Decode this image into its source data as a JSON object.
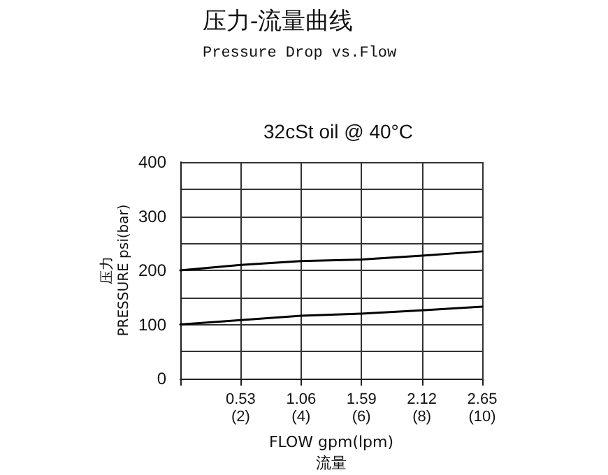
{
  "chart_data": {
    "type": "line",
    "title": "压力-流量曲线",
    "subtitle": "Pressure Drop vs.Flow",
    "annotations": [
      "32cSt oil @ 40°C"
    ],
    "xlabel": "FLOW gpm(lpm)\n流量",
    "ylabel": "压力\nPRESSURE psi(bar)",
    "x": [
      0,
      0.53,
      1.06,
      1.59,
      2.12,
      2.65
    ],
    "series": [
      {
        "color": "#000000",
        "values": [
          200,
          210,
          217,
          220,
          227,
          235
        ]
      },
      {
        "color": "#000000",
        "values": [
          100,
          108,
          116,
          120,
          126,
          133
        ]
      }
    ],
    "xlim": [
      0,
      2.65
    ],
    "xticks": [
      {
        "value": 0,
        "label": null
      },
      0.53,
      1.06,
      1.59,
      2.12,
      2.65
    ],
    "x2lim": [
      0,
      10
    ],
    "x2ticks": [
      {
        "value": 2,
        "label": "(2)"
      },
      {
        "value": 4,
        "label": "(4)"
      },
      {
        "value": 6,
        "label": "(6)"
      },
      {
        "value": 8,
        "label": "(8)"
      },
      {
        "value": 10,
        "label": "(10)"
      }
    ],
    "ylim": [
      0,
      400
    ],
    "yticks": [
      0,
      {
        "value": 50,
        "label": null
      },
      100,
      {
        "value": 150,
        "label": null
      },
      200,
      {
        "value": 250,
        "label": null
      },
      300,
      {
        "value": 350,
        "label": null
      },
      400
    ],
    "grid": true,
    "marker": "none"
  }
}
